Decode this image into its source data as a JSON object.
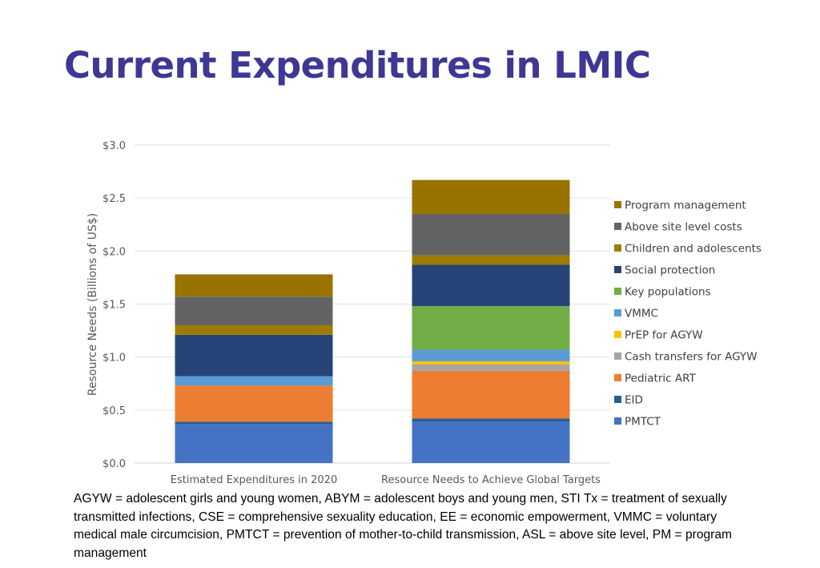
{
  "page": {
    "title": "Current Expenditures in LMIC",
    "footnote": "AGYW = adolescent girls and young women, ABYM = adolescent boys and young men, STI Tx = treatment of sexually transmitted infections, CSE = comprehensive sexuality education, EE = economic empowerment, VMMC = voluntary medical male circumcision, PMTCT = prevention of mother-to-child transmission, ASL = above site level, PM = program management"
  },
  "chart_data": {
    "type": "bar",
    "stacked": true,
    "title": "",
    "xlabel": "",
    "ylabel": "Resource Needs (Billions of US$)",
    "ylim": [
      0,
      3.0
    ],
    "yticks": [
      0,
      0.5,
      1.0,
      1.5,
      2.0,
      2.5,
      3.0
    ],
    "ytick_labels": [
      "$0.0",
      "$0.5",
      "$1.0",
      "$1.5",
      "$2.0",
      "$2.5",
      "$3.0"
    ],
    "grid": true,
    "legend_position": "right",
    "categories": [
      "Estimated Expenditures in 2020",
      "Resource Needs to Achieve Global Targets"
    ],
    "series": [
      {
        "name": "PMTCT",
        "color": "#4472c4",
        "values": [
          0.37,
          0.39
        ]
      },
      {
        "name": "EID",
        "color": "#255e91",
        "values": [
          0.02,
          0.03
        ]
      },
      {
        "name": "Pediatric ART",
        "color": "#ed7d31",
        "values": [
          0.34,
          0.45
        ]
      },
      {
        "name": "Cash transfers for AGYW",
        "color": "#a5a5a5",
        "values": [
          0.0,
          0.06
        ]
      },
      {
        "name": "PrEP for AGYW",
        "color": "#ffc000",
        "values": [
          0.0,
          0.03
        ]
      },
      {
        "name": "VMMC",
        "color": "#5b9bd5",
        "values": [
          0.09,
          0.11
        ]
      },
      {
        "name": "Key populations",
        "color": "#70ad47",
        "values": [
          0.0,
          0.41
        ]
      },
      {
        "name": "Social protection",
        "color": "#264478",
        "values": [
          0.39,
          0.39
        ]
      },
      {
        "name": "Children and adolescents",
        "color": "#9e7c00",
        "values": [
          0.09,
          0.09
        ]
      },
      {
        "name": "Above site level costs",
        "color": "#636363",
        "values": [
          0.27,
          0.39
        ]
      },
      {
        "name": "Program management",
        "color": "#997300",
        "values": [
          0.21,
          0.32
        ]
      }
    ]
  }
}
